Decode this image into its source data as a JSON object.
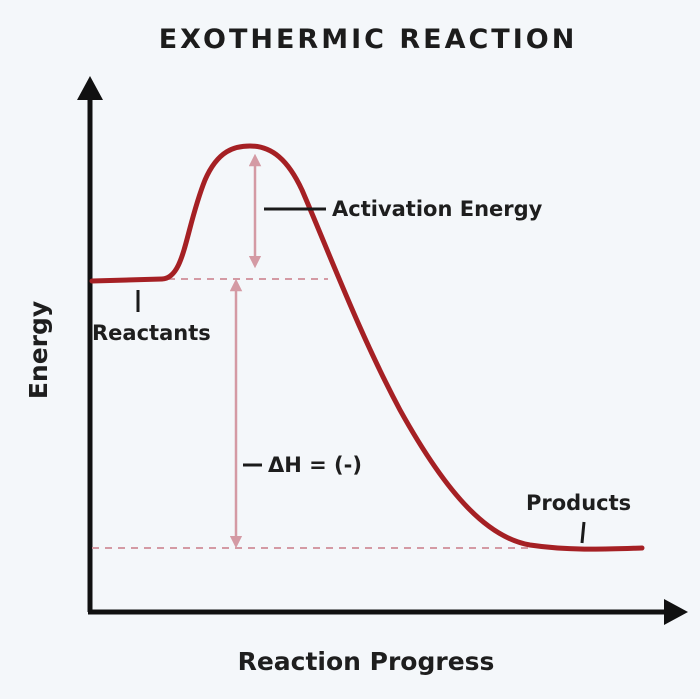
{
  "diagram": {
    "title": "EXOTHERMIC REACTION",
    "x_axis_label": "Reaction Progress",
    "y_axis_label": "Energy",
    "labels": {
      "activation_energy": "Activation Energy",
      "reactants": "Reactants",
      "delta_h": "ΔH = (-)",
      "products": "Products"
    },
    "colors": {
      "curve": "#a52024",
      "guide": "#d49aa4",
      "axis": "#111111",
      "background": "#f4f7fa"
    }
  }
}
